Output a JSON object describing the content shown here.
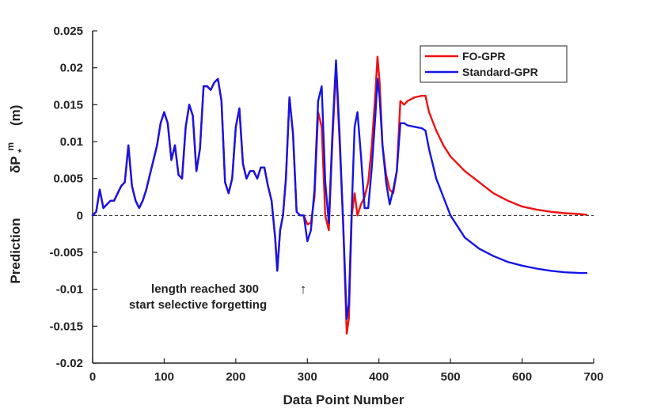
{
  "chart_data": {
    "type": "line",
    "title": "",
    "xlabel": "Data Point Number",
    "ylabel": {
      "prefix": "Prediction",
      "symbol_main": "δP",
      "symbol_sub": "*",
      "symbol_sup": "m",
      "unit": "(m)"
    },
    "xlim": [
      0,
      700
    ],
    "ylim": [
      -0.02,
      0.025
    ],
    "xticks": [
      0,
      100,
      200,
      300,
      400,
      500,
      600,
      700
    ],
    "yticks": [
      -0.02,
      -0.015,
      -0.01,
      -0.005,
      0,
      0.005,
      0.01,
      0.015,
      0.02,
      0.025
    ],
    "xtick_labels": [
      "0",
      "100",
      "200",
      "300",
      "400",
      "500",
      "600",
      "700"
    ],
    "ytick_labels": [
      "-0.02",
      "-0.015",
      "-0.01",
      "-0.005",
      "0",
      "0.005",
      "0.01",
      "0.015",
      "0.02",
      "0.025"
    ],
    "grid": false,
    "zero_line": {
      "y": 0,
      "style": "dashed"
    },
    "legend": {
      "position": "top-right"
    },
    "series": [
      {
        "name": "FO-GPR",
        "color": "#ee1111",
        "x": [
          0,
          5,
          10,
          15,
          20,
          25,
          30,
          35,
          40,
          45,
          50,
          55,
          60,
          65,
          70,
          75,
          80,
          85,
          90,
          95,
          100,
          105,
          110,
          115,
          120,
          125,
          130,
          135,
          140,
          145,
          150,
          155,
          160,
          165,
          170,
          175,
          180,
          185,
          190,
          195,
          200,
          205,
          210,
          215,
          220,
          225,
          230,
          235,
          240,
          245,
          250,
          255,
          258,
          262,
          266,
          270,
          275,
          280,
          285,
          290,
          295,
          300,
          305,
          310,
          315,
          320,
          325,
          330,
          335,
          340,
          345,
          350,
          355,
          358,
          362,
          366,
          370,
          375,
          380,
          385,
          390,
          395,
          398,
          401,
          405,
          410,
          415,
          420,
          425,
          430,
          435,
          440,
          450,
          460,
          465,
          470,
          480,
          490,
          500,
          520,
          540,
          560,
          580,
          600,
          620,
          640,
          660,
          680,
          690
        ],
        "y": [
          0,
          0.0005,
          0.0035,
          0.001,
          0.0015,
          0.002,
          0.002,
          0.003,
          0.004,
          0.0045,
          0.0095,
          0.004,
          0.002,
          0.001,
          0.002,
          0.0035,
          0.0055,
          0.0075,
          0.0095,
          0.0125,
          0.014,
          0.0125,
          0.0075,
          0.0095,
          0.0055,
          0.005,
          0.012,
          0.015,
          0.0135,
          0.006,
          0.009,
          0.0175,
          0.0175,
          0.017,
          0.018,
          0.0185,
          0.0155,
          0.0045,
          0.003,
          0.005,
          0.012,
          0.0145,
          0.007,
          0.005,
          0.006,
          0.006,
          0.005,
          0.0065,
          0.0065,
          0.004,
          0.002,
          -0.003,
          -0.0075,
          -0.002,
          0.0,
          0.005,
          0.016,
          0.011,
          0.0005,
          0.0,
          0.0,
          -0.0012,
          -0.001,
          0.0025,
          0.014,
          0.012,
          0.0,
          -0.002,
          0.01,
          0.02,
          0.01,
          -0.001,
          -0.016,
          -0.014,
          0.0,
          0.003,
          0.0,
          0.0015,
          0.0025,
          0.0045,
          0.0095,
          0.0165,
          0.0215,
          0.018,
          0.0095,
          0.0055,
          0.0035,
          0.003,
          0.006,
          0.0155,
          0.015,
          0.0155,
          0.016,
          0.0162,
          0.0162,
          0.014,
          0.0115,
          0.0095,
          0.008,
          0.006,
          0.0045,
          0.003,
          0.002,
          0.0012,
          0.0008,
          0.0005,
          0.0003,
          0.0002,
          0.0001
        ]
      },
      {
        "name": "Standard-GPR",
        "color": "#1515e6",
        "x": [
          0,
          5,
          10,
          15,
          20,
          25,
          30,
          35,
          40,
          45,
          50,
          55,
          60,
          65,
          70,
          75,
          80,
          85,
          90,
          95,
          100,
          105,
          110,
          115,
          120,
          125,
          130,
          135,
          140,
          145,
          150,
          155,
          160,
          165,
          170,
          175,
          180,
          185,
          190,
          195,
          200,
          205,
          210,
          215,
          220,
          225,
          230,
          235,
          240,
          245,
          250,
          255,
          258,
          262,
          266,
          270,
          275,
          280,
          285,
          290,
          295,
          300,
          305,
          310,
          315,
          320,
          325,
          330,
          335,
          340,
          345,
          350,
          355,
          358,
          362,
          366,
          370,
          375,
          380,
          385,
          390,
          395,
          398,
          401,
          405,
          410,
          415,
          420,
          425,
          430,
          435,
          440,
          450,
          460,
          465,
          470,
          480,
          490,
          500,
          520,
          540,
          560,
          580,
          600,
          620,
          640,
          660,
          680,
          690
        ],
        "y": [
          0,
          0.0005,
          0.0035,
          0.001,
          0.0015,
          0.002,
          0.002,
          0.003,
          0.004,
          0.0045,
          0.0095,
          0.004,
          0.002,
          0.001,
          0.002,
          0.0035,
          0.0055,
          0.0075,
          0.0095,
          0.0125,
          0.014,
          0.0125,
          0.0075,
          0.0095,
          0.0055,
          0.005,
          0.012,
          0.015,
          0.0135,
          0.006,
          0.009,
          0.0175,
          0.0175,
          0.017,
          0.018,
          0.0185,
          0.0155,
          0.0045,
          0.003,
          0.005,
          0.012,
          0.0145,
          0.007,
          0.005,
          0.006,
          0.006,
          0.005,
          0.0065,
          0.0065,
          0.004,
          0.002,
          -0.003,
          -0.0075,
          -0.002,
          0.0,
          0.005,
          0.016,
          0.011,
          0.0005,
          0.0,
          0.0,
          -0.0035,
          -0.002,
          0.0035,
          0.0155,
          0.0175,
          0.0045,
          -0.001,
          0.011,
          0.021,
          0.011,
          -0.001,
          -0.014,
          -0.012,
          0.001,
          0.012,
          0.014,
          0.008,
          0.001,
          0.001,
          0.0065,
          0.0135,
          0.0185,
          0.016,
          0.0095,
          0.0045,
          0.0015,
          0.0035,
          0.006,
          0.0125,
          0.0125,
          0.0122,
          0.012,
          0.0118,
          0.0115,
          0.009,
          0.005,
          0.0025,
          0.0,
          -0.003,
          -0.0045,
          -0.0055,
          -0.0063,
          -0.0068,
          -0.0072,
          -0.0075,
          -0.0077,
          -0.0078,
          -0.0078
        ]
      }
    ],
    "annotations": {
      "line1": "length reached 300",
      "line2": "start selective forgetting",
      "arrow": "↑"
    }
  }
}
